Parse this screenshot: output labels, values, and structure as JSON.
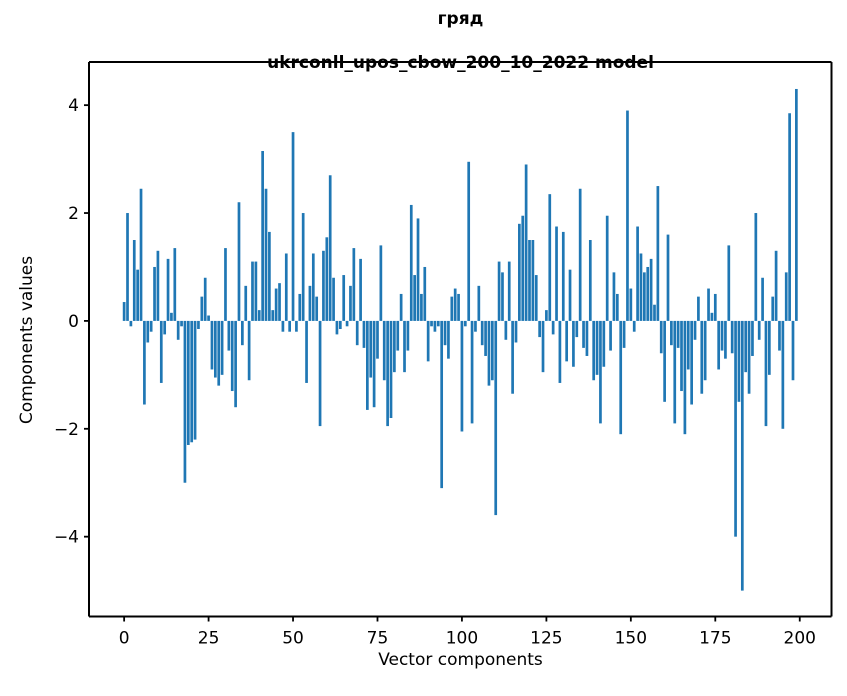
{
  "figure": {
    "title_line1": "гряд",
    "title_line2": "ukrconll_upos_cbow_200_10_2022 model",
    "xlabel": "Vector components",
    "ylabel": "Components values"
  },
  "chart_data": {
    "type": "bar",
    "title": "гряд\nukrconll_upos_cbow_200_10_2022 model",
    "xlabel": "Vector components",
    "ylabel": "Components values",
    "legend": null,
    "grid": false,
    "bar_color": "#1f77b4",
    "axis_color": "#000000",
    "background_color": "#ffffff",
    "x_start": 0,
    "bar_width": 0.8,
    "xticks": [
      0,
      25,
      50,
      75,
      100,
      125,
      150,
      175,
      200
    ],
    "yticks": [
      -4,
      -2,
      0,
      2,
      4
    ],
    "xlim": [
      -10.4,
      209.4
    ],
    "ylim": [
      -5.48,
      4.8
    ],
    "values": [
      0.35,
      2.0,
      -0.1,
      1.5,
      0.95,
      2.45,
      -1.55,
      -0.4,
      -0.2,
      1.0,
      1.3,
      -1.15,
      -0.25,
      1.15,
      0.15,
      1.35,
      -0.35,
      -0.1,
      -3.0,
      -2.3,
      -2.25,
      -2.2,
      -0.15,
      0.45,
      0.8,
      0.1,
      -0.9,
      -1.05,
      -1.2,
      -1.0,
      1.35,
      -0.55,
      -1.3,
      -1.6,
      2.2,
      -0.45,
      0.65,
      -1.1,
      1.1,
      1.1,
      0.2,
      3.15,
      2.45,
      1.65,
      0.2,
      0.6,
      0.7,
      -0.2,
      1.25,
      -0.2,
      3.5,
      -0.2,
      0.5,
      2.0,
      -1.15,
      0.65,
      1.25,
      0.45,
      -1.95,
      1.3,
      1.55,
      2.7,
      0.8,
      -0.25,
      -0.15,
      0.85,
      -0.1,
      0.65,
      1.35,
      -0.45,
      1.15,
      -0.5,
      -1.65,
      -1.05,
      -1.6,
      -0.7,
      1.4,
      -1.1,
      -1.95,
      -1.8,
      -0.95,
      -0.55,
      0.5,
      -0.95,
      -0.55,
      2.15,
      0.85,
      1.9,
      0.5,
      1.0,
      -0.75,
      -0.1,
      -0.2,
      -0.1,
      -3.1,
      -0.45,
      -0.7,
      0.45,
      0.6,
      0.5,
      -2.05,
      -0.1,
      2.95,
      -1.9,
      -0.2,
      0.65,
      -0.45,
      -0.65,
      -1.2,
      -1.1,
      -3.6,
      1.1,
      0.9,
      -0.35,
      1.1,
      -1.35,
      -0.4,
      1.8,
      1.95,
      2.9,
      1.5,
      1.5,
      0.85,
      -0.3,
      -0.95,
      0.2,
      2.35,
      -0.25,
      1.75,
      -1.15,
      1.65,
      -0.75,
      0.95,
      -0.85,
      -0.3,
      2.45,
      -0.5,
      -0.65,
      1.5,
      -1.1,
      -1.0,
      -1.9,
      -0.85,
      1.95,
      -0.55,
      0.9,
      0.5,
      -2.1,
      -0.5,
      3.9,
      0.6,
      -0.2,
      1.75,
      1.25,
      0.9,
      1.0,
      1.15,
      0.3,
      2.5,
      -0.6,
      -1.5,
      1.6,
      -0.45,
      -1.9,
      -0.5,
      -1.3,
      -2.1,
      -0.9,
      -1.55,
      -0.35,
      0.45,
      -1.35,
      -1.1,
      0.6,
      0.15,
      0.5,
      -0.9,
      -0.55,
      -0.7,
      1.4,
      -0.6,
      -4.0,
      -1.5,
      -5.0,
      -0.95,
      -1.35,
      -0.65,
      2.0,
      -0.35,
      0.8,
      -1.95,
      -1.0,
      0.45,
      1.3,
      -0.55,
      -2.0,
      0.9,
      3.85,
      -1.1,
      4.3
    ]
  }
}
